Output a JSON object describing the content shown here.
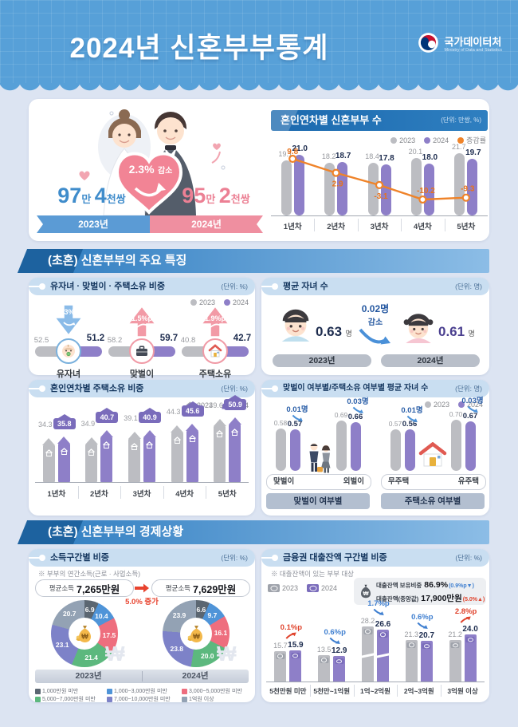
{
  "header": {
    "title": "2024년 신혼부부통계",
    "logo_ko": "국가데이터처",
    "logo_en": "Ministry of Data and Statistics"
  },
  "sections": {
    "s1": "(초혼) 신혼부부의 주요 특징",
    "s2": "(초혼) 신혼부부의 경제상황"
  },
  "hero": {
    "heart_pct": "2.3%",
    "heart_word": "감소",
    "c23": {
      "n1": "97",
      "u1": "만",
      "n2": "4",
      "u2": "천쌍"
    },
    "c24": {
      "n1": "95",
      "u1": "만",
      "n2": "2",
      "u2": "천쌍"
    },
    "label2023": "2023년",
    "label2024": "2024년",
    "blue": "#3f8ccb",
    "pink": "#ec8094"
  },
  "cards": {
    "yearly": {
      "title": "혼인연차별 신혼부부 수",
      "unit": "(단위: 만쌍, %)",
      "legend": [
        "2023",
        "2024",
        "증감률"
      ]
    },
    "ratios": {
      "title": "유자녀 · 맞벌이 · 주택소유 비중",
      "unit": "(단위: %)",
      "legend": [
        "2023",
        "2024"
      ]
    },
    "children": {
      "title": "평균 자녀 수",
      "unit": "(단위: 명)",
      "suffix": "명",
      "change_line1": "0.02명",
      "change_line2": "감소",
      "labels": [
        "2023년",
        "2024년"
      ]
    },
    "houses": {
      "title": "혼인연차별 주택소유 비중",
      "unit": "(단위: %)",
      "legend": [
        "2023",
        "2024"
      ]
    },
    "childgroups": {
      "title": "맞벌이 여부별/주택소유 여부별 평균 자녀 수",
      "unit": "(단위: 명)",
      "legend": [
        "2023",
        "2024"
      ]
    },
    "income": {
      "title": "소득구간별 비중",
      "unit": "(단위: %)",
      "note": "※ 부부의 연간소득(근로 · 사업소득)",
      "avg_label": "평균소득",
      "avg2023": "7,265만원",
      "avg2024": "7,629만원",
      "increase": "5.0% 증가",
      "years": [
        "2023년",
        "2024년"
      ]
    },
    "loans": {
      "title": "금융권 대출잔액 구간별 비중",
      "unit": "(단위: %)",
      "note": "※ 대출잔액이 있는 부부 대상",
      "legend": [
        "2023",
        "2024"
      ]
    }
  },
  "colors": {
    "gray_bar": "#bcbdc2",
    "purple_bar": "#8e7fc8",
    "orange": "#ef8329",
    "up_red": "#e0432c",
    "down_blue": "#3f7fd0"
  },
  "chart_data": [
    {
      "id": "total_newlyweds",
      "type": "bar",
      "title": "신혼부부 수",
      "categories": [
        "2023년",
        "2024년"
      ],
      "value_labels": [
        "97만 4천쌍",
        "95만 2천쌍"
      ],
      "change": "2.3% 감소"
    },
    {
      "id": "by_marriage_year",
      "type": "bar",
      "title": "혼인연차별 신혼부부 수",
      "unit": "만쌍, %",
      "categories": [
        "1년차",
        "2년차",
        "3년차",
        "4년차",
        "5년차"
      ],
      "series": [
        {
          "name": "2023",
          "values": [
            19.1,
            18.2,
            18.4,
            20.1,
            21.7
          ]
        },
        {
          "name": "2024",
          "values": [
            21.0,
            18.7,
            17.8,
            18.0,
            19.7
          ]
        },
        {
          "name": "증감률",
          "type": "line",
          "values": [
            9.8,
            2.9,
            -3.1,
            -10.2,
            -9.3
          ]
        }
      ]
    },
    {
      "id": "key_ratios",
      "type": "bar",
      "title": "유자녀 · 맞벌이 · 주택소유 비중",
      "unit": "%",
      "categories": [
        "유자녀",
        "맞벌이",
        "주택소유"
      ],
      "series": [
        {
          "name": "2023",
          "values": [
            52.5,
            58.2,
            40.8
          ]
        },
        {
          "name": "2024",
          "values": [
            51.2,
            59.7,
            42.7
          ]
        }
      ],
      "changes": [
        {
          "v": "1.3%p",
          "dir": "down"
        },
        {
          "v": "1.5%p",
          "dir": "up"
        },
        {
          "v": "1.9%p",
          "dir": "up"
        }
      ]
    },
    {
      "id": "avg_children",
      "type": "bar",
      "title": "평균 자녀 수",
      "unit": "명",
      "categories": [
        "2023년",
        "2024년"
      ],
      "values": [
        0.63,
        0.61
      ],
      "change": "0.02명 감소"
    },
    {
      "id": "home_ownership_by_year",
      "type": "bar",
      "title": "혼인연차별 주택소유 비중",
      "unit": "%",
      "categories": [
        "1년차",
        "2년차",
        "3년차",
        "4년차",
        "5년차"
      ],
      "series": [
        {
          "name": "2023",
          "values": [
            34.3,
            34.9,
            39.1,
            44.3,
            49.6
          ]
        },
        {
          "name": "2024",
          "values": [
            35.8,
            40.7,
            40.9,
            45.6,
            50.9
          ]
        }
      ]
    },
    {
      "id": "children_by_group",
      "type": "bar",
      "title": "맞벌이 여부별/주택소유 여부별 평균 자녀 수",
      "unit": "명",
      "groups": [
        {
          "label": "맞벌이 여부별",
          "items": [
            {
              "label": "맞벌이",
              "v2023": 0.58,
              "v2024": 0.57,
              "change": "0.01명"
            },
            {
              "label": "외벌이",
              "v2023": 0.69,
              "v2024": 0.66,
              "change": "0.03명"
            }
          ]
        },
        {
          "label": "주택소유 여부별",
          "items": [
            {
              "label": "무주택",
              "v2023": 0.57,
              "v2024": 0.56,
              "change": "0.01명"
            },
            {
              "label": "유주택",
              "v2023": 0.7,
              "v2024": 0.67,
              "change": "0.03명"
            }
          ]
        }
      ]
    },
    {
      "id": "income_share",
      "type": "pie",
      "title": "소득구간별 비중",
      "unit": "%",
      "labels": [
        "1,000만원 미만",
        "1,000~3,000만원 미만",
        "3,000~5,000만원 미만",
        "5,000~7,000만원 미만",
        "7,000~10,000만원 미만",
        "1억원 이상"
      ],
      "colors": [
        "#5b6671",
        "#4f94d8",
        "#ee6e7e",
        "#5cb87e",
        "#7d82c8",
        "#93a2b4"
      ],
      "series": [
        {
          "name": "2023년",
          "values": [
            6.9,
            10.4,
            17.5,
            21.4,
            23.1,
            20.7
          ]
        },
        {
          "name": "2024년",
          "values": [
            6.6,
            9.7,
            16.1,
            20.0,
            23.8,
            23.9
          ]
        }
      ],
      "avg_income": [
        {
          "label": "평균소득",
          "value": "7,265만원"
        },
        {
          "label": "평균소득",
          "value": "7,629만원"
        }
      ],
      "increase": "5.0% 증가"
    },
    {
      "id": "loan_balance_share",
      "type": "bar",
      "title": "금융권 대출잔액 구간별 비중",
      "unit": "%",
      "categories": [
        "5천만원 미만",
        "5천만~1억원",
        "1억~2억원",
        "2억~3억원",
        "3억원 이상"
      ],
      "series": [
        {
          "name": "2023",
          "values": [
            15.7,
            13.5,
            28.2,
            21.3,
            21.2
          ]
        },
        {
          "name": "2024",
          "values": [
            15.9,
            12.9,
            26.6,
            20.7,
            24.0
          ]
        }
      ],
      "changes": [
        {
          "v": "0.1%p",
          "dir": "up"
        },
        {
          "v": "0.6%p",
          "dir": "down"
        },
        {
          "v": "1.7%p",
          "dir": "down"
        },
        {
          "v": "0.6%p",
          "dir": "down"
        },
        {
          "v": "2.8%p",
          "dir": "up"
        }
      ],
      "info": [
        {
          "label": "대출잔액 보유비중",
          "value": "86.9%",
          "change": "0.9%p",
          "dir": "down"
        },
        {
          "label": "대출잔액(중앙값)",
          "value": "17,900만원",
          "change": "5.0%",
          "dir": "up"
        }
      ]
    }
  ]
}
